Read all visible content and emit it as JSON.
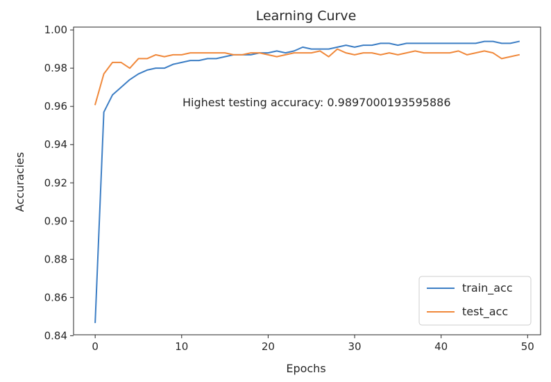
{
  "chart_data": {
    "type": "line",
    "title": "Learning Curve",
    "xlabel": "Epochs",
    "ylabel": "Accuracies",
    "xlim": [
      -2.5,
      51.5
    ],
    "ylim": [
      0.8405,
      1.0015
    ],
    "xticks": [
      0,
      10,
      20,
      30,
      40,
      50
    ],
    "xtick_labels": [
      "0",
      "10",
      "20",
      "30",
      "40",
      "50"
    ],
    "yticks": [
      0.84,
      0.86,
      0.88,
      0.9,
      0.92,
      0.94,
      0.96,
      0.98,
      1.0
    ],
    "ytick_labels": [
      "0.84",
      "0.86",
      "0.88",
      "0.90",
      "0.92",
      "0.94",
      "0.96",
      "0.98",
      "1.00"
    ],
    "grid": false,
    "legend_position": "bottom-right",
    "annotation": "Highest testing accuracy: 0.9897000193595886",
    "x": [
      0,
      1,
      2,
      3,
      4,
      5,
      6,
      7,
      8,
      9,
      10,
      11,
      12,
      13,
      14,
      15,
      16,
      17,
      18,
      19,
      20,
      21,
      22,
      23,
      24,
      25,
      26,
      27,
      28,
      29,
      30,
      31,
      32,
      33,
      34,
      35,
      36,
      37,
      38,
      39,
      40,
      41,
      42,
      43,
      44,
      45,
      46,
      47,
      48,
      49
    ],
    "series": [
      {
        "name": "train_acc",
        "color": "#3b7dc4",
        "values": [
          0.847,
          0.957,
          0.966,
          0.97,
          0.974,
          0.977,
          0.979,
          0.98,
          0.98,
          0.982,
          0.983,
          0.984,
          0.984,
          0.985,
          0.985,
          0.986,
          0.987,
          0.987,
          0.987,
          0.988,
          0.988,
          0.989,
          0.988,
          0.989,
          0.991,
          0.99,
          0.99,
          0.99,
          0.991,
          0.992,
          0.991,
          0.992,
          0.992,
          0.993,
          0.993,
          0.992,
          0.993,
          0.993,
          0.993,
          0.993,
          0.993,
          0.993,
          0.993,
          0.993,
          0.993,
          0.994,
          0.994,
          0.993,
          0.993,
          0.994
        ]
      },
      {
        "name": "test_acc",
        "color": "#f0883a",
        "values": [
          0.961,
          0.977,
          0.983,
          0.983,
          0.98,
          0.985,
          0.985,
          0.987,
          0.986,
          0.987,
          0.987,
          0.988,
          0.988,
          0.988,
          0.988,
          0.988,
          0.987,
          0.987,
          0.988,
          0.988,
          0.987,
          0.986,
          0.987,
          0.988,
          0.988,
          0.988,
          0.989,
          0.986,
          0.99,
          0.988,
          0.987,
          0.988,
          0.988,
          0.987,
          0.988,
          0.987,
          0.988,
          0.989,
          0.988,
          0.988,
          0.988,
          0.988,
          0.989,
          0.987,
          0.988,
          0.989,
          0.988,
          0.985,
          0.986,
          0.987
        ]
      }
    ]
  }
}
